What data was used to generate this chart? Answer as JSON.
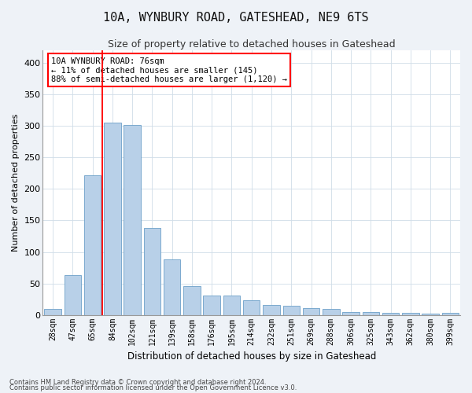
{
  "title": "10A, WYNBURY ROAD, GATESHEAD, NE9 6TS",
  "subtitle": "Size of property relative to detached houses in Gateshead",
  "xlabel": "Distribution of detached houses by size in Gateshead",
  "ylabel": "Number of detached properties",
  "bar_color": "#b8d0e8",
  "bar_edge_color": "#6ca0c8",
  "grid_color": "#d0dde8",
  "categories": [
    "28sqm",
    "47sqm",
    "65sqm",
    "84sqm",
    "102sqm",
    "121sqm",
    "139sqm",
    "158sqm",
    "176sqm",
    "195sqm",
    "214sqm",
    "232sqm",
    "251sqm",
    "269sqm",
    "288sqm",
    "306sqm",
    "325sqm",
    "343sqm",
    "362sqm",
    "380sqm",
    "399sqm"
  ],
  "values": [
    9,
    63,
    222,
    305,
    302,
    138,
    88,
    46,
    31,
    31,
    23,
    16,
    14,
    11,
    10,
    5,
    4,
    3,
    3,
    2,
    3
  ],
  "ylim": [
    0,
    420
  ],
  "yticks": [
    0,
    50,
    100,
    150,
    200,
    250,
    300,
    350,
    400
  ],
  "property_line_x": 2.5,
  "annotation_text": "10A WYNBURY ROAD: 76sqm\n← 11% of detached houses are smaller (145)\n88% of semi-detached houses are larger (1,120) →",
  "annotation_box_color": "white",
  "annotation_box_edge_color": "red",
  "footer_line1": "Contains HM Land Registry data © Crown copyright and database right 2024.",
  "footer_line2": "Contains public sector information licensed under the Open Government Licence v3.0.",
  "background_color": "#eef2f7",
  "plot_background_color": "white",
  "title_fontsize": 11,
  "subtitle_fontsize": 9,
  "ylabel_fontsize": 8,
  "xlabel_fontsize": 8.5,
  "tick_fontsize": 7,
  "annotation_fontsize": 7.5,
  "footer_fontsize": 6
}
